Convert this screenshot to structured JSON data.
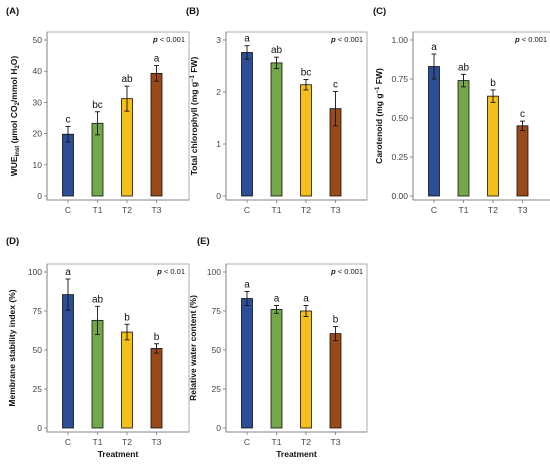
{
  "colors": {
    "C": "#2c4e96",
    "T1": "#72a84a",
    "T2": "#f5bf1a",
    "T3": "#9a4a18"
  },
  "chart_data": [
    {
      "panel": "(A)",
      "type": "bar",
      "categories": [
        "C",
        "T1",
        "T2",
        "T3"
      ],
      "values": [
        19.8,
        23.3,
        31.2,
        39.3
      ],
      "errors": [
        2.5,
        3.7,
        4.0,
        2.5
      ],
      "letters": [
        "c",
        "bc",
        "ab",
        "a"
      ],
      "pvalue": "< 0.001",
      "ylabel_main": "WUE",
      "ylabel_sub": "inst",
      "ylabel_rest": " (µmol CO",
      "ylabel_sub2": "2",
      "ylabel_rest2": "/mmol H",
      "ylabel_sub3": "2",
      "ylabel_rest3": "O)",
      "xlabel": "",
      "ylim": [
        0,
        50
      ],
      "yticks": [
        "0",
        "10",
        "20",
        "30",
        "40",
        "50"
      ]
    },
    {
      "panel": "(B)",
      "type": "bar",
      "categories": [
        "C",
        "T1",
        "T2",
        "T3"
      ],
      "values": [
        2.76,
        2.56,
        2.14,
        1.68
      ],
      "errors": [
        0.13,
        0.11,
        0.1,
        0.33
      ],
      "letters": [
        "a",
        "ab",
        "bc",
        "c"
      ],
      "pvalue": "< 0.001",
      "ylabel_main": "Total chlorophyll (mg g",
      "ylabel_sup": "−1",
      "ylabel_rest": " FW)",
      "xlabel": "",
      "ylim": [
        0,
        3
      ],
      "yticks": [
        "0",
        "1",
        "2",
        "3"
      ]
    },
    {
      "panel": "(C)",
      "type": "bar",
      "categories": [
        "C",
        "T1",
        "T2",
        "T3"
      ],
      "values": [
        0.83,
        0.74,
        0.64,
        0.45
      ],
      "errors": [
        0.08,
        0.04,
        0.04,
        0.03
      ],
      "letters": [
        "a",
        "ab",
        "b",
        "c"
      ],
      "pvalue": "< 0.001",
      "ylabel_main": "Carotenoid (mg g",
      "ylabel_sup": "−1",
      "ylabel_rest": " FW)",
      "xlabel": "",
      "ylim": [
        0,
        1.0
      ],
      "yticks": [
        "0.00",
        "0.25",
        "0.50",
        "0.75",
        "1.00"
      ]
    },
    {
      "panel": "(D)",
      "type": "bar",
      "categories": [
        "C",
        "T1",
        "T2",
        "T3"
      ],
      "values": [
        85.5,
        69.0,
        61.5,
        51.0
      ],
      "errors": [
        10,
        9,
        5,
        3
      ],
      "letters": [
        "a",
        "ab",
        "b",
        "b"
      ],
      "pvalue": "< 0.01",
      "ylabel_main": "Membrane stability index (%)",
      "xlabel": "Treatment",
      "ylim": [
        0,
        100
      ],
      "yticks": [
        "0",
        "25",
        "50",
        "75",
        "100"
      ]
    },
    {
      "panel": "(E)",
      "type": "bar",
      "categories": [
        "C",
        "T1",
        "T2",
        "T3"
      ],
      "values": [
        83.0,
        76.0,
        75.0,
        60.5
      ],
      "errors": [
        4.5,
        2.5,
        3.5,
        4.5
      ],
      "letters": [
        "a",
        "a",
        "a",
        "b"
      ],
      "pvalue": "< 0.001",
      "ylabel_main": "Relative water content (%)",
      "xlabel": "Treatment",
      "ylim": [
        0,
        100
      ],
      "yticks": [
        "0",
        "25",
        "50",
        "75",
        "100"
      ]
    }
  ]
}
